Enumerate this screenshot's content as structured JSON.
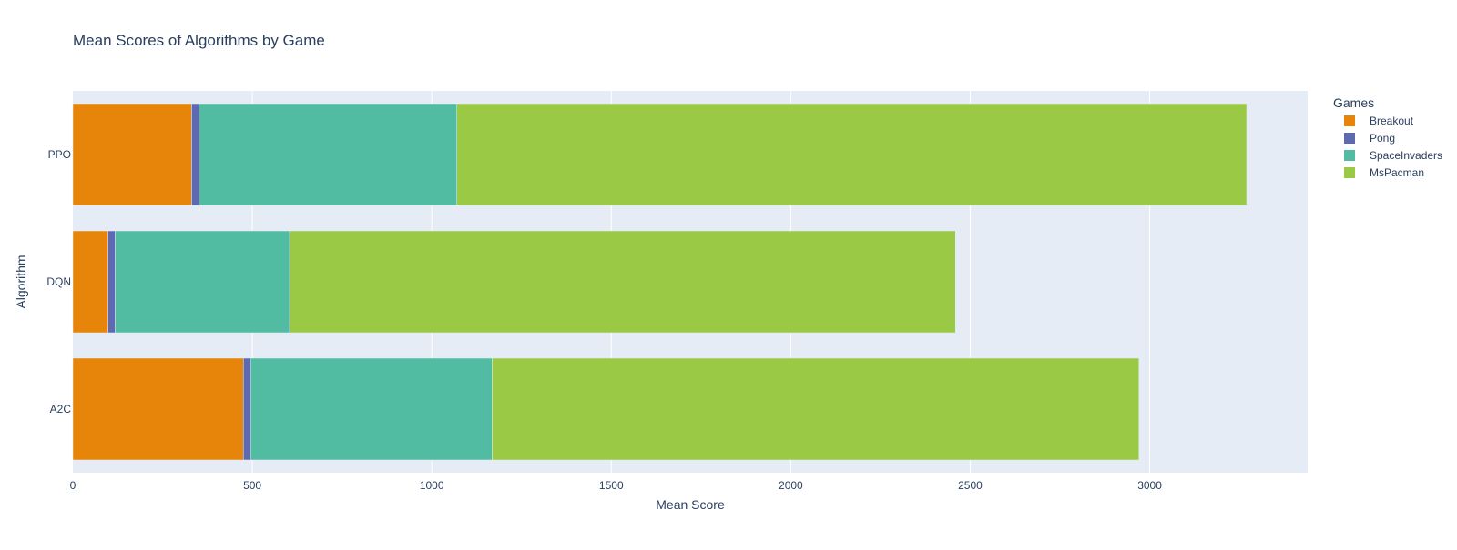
{
  "chart_data": {
    "type": "bar",
    "orientation": "horizontal",
    "barmode": "stack",
    "title": "Mean Scores of Algorithms by Game",
    "xlabel": "Mean Score",
    "ylabel": "Algorithm",
    "categories": [
      "A2C",
      "DQN",
      "PPO"
    ],
    "xlim": [
      0,
      3440
    ],
    "xticks": [
      0,
      500,
      1000,
      1500,
      2000,
      2500,
      3000
    ],
    "grid": true,
    "legend": {
      "title": "Games",
      "placement": "top-right"
    },
    "series": [
      {
        "name": "Breakout",
        "color": "#E6850A",
        "values": [
          475,
          98,
          331
        ]
      },
      {
        "name": "Pong",
        "color": "#5D69B1",
        "values": [
          20,
          20,
          21
        ]
      },
      {
        "name": "SpaceInvaders",
        "color": "#52BCA3",
        "values": [
          673,
          486,
          718
        ]
      },
      {
        "name": "MsPacman",
        "color": "#99C945",
        "values": [
          1802,
          1855,
          2200
        ]
      }
    ]
  }
}
